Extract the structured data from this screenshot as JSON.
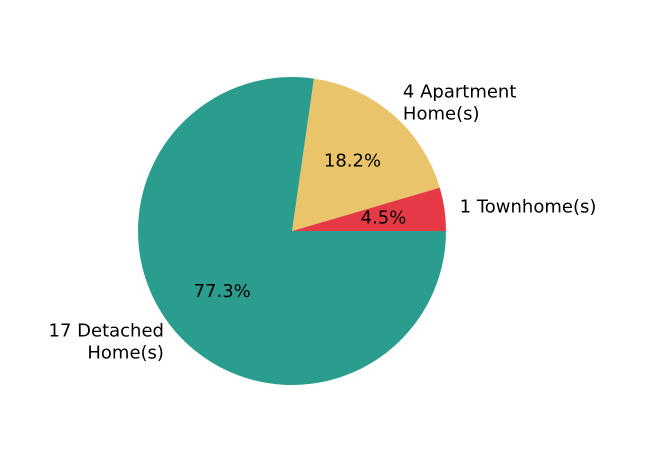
{
  "chart_data": {
    "type": "pie",
    "start_angle_deg": 0,
    "direction": "counterclockwise",
    "slices": [
      {
        "label_lines": [
          "1 Townhome(s)"
        ],
        "value": 1,
        "pct_label": "4.5%",
        "color": "#e63946"
      },
      {
        "label_lines": [
          "4 Apartment",
          "Home(s)"
        ],
        "value": 4,
        "pct_label": "18.2%",
        "color": "#e9c46a"
      },
      {
        "label_lines": [
          "17 Detached",
          "Home(s)"
        ],
        "value": 17,
        "pct_label": "77.3%",
        "color": "#2a9d8f"
      }
    ]
  }
}
